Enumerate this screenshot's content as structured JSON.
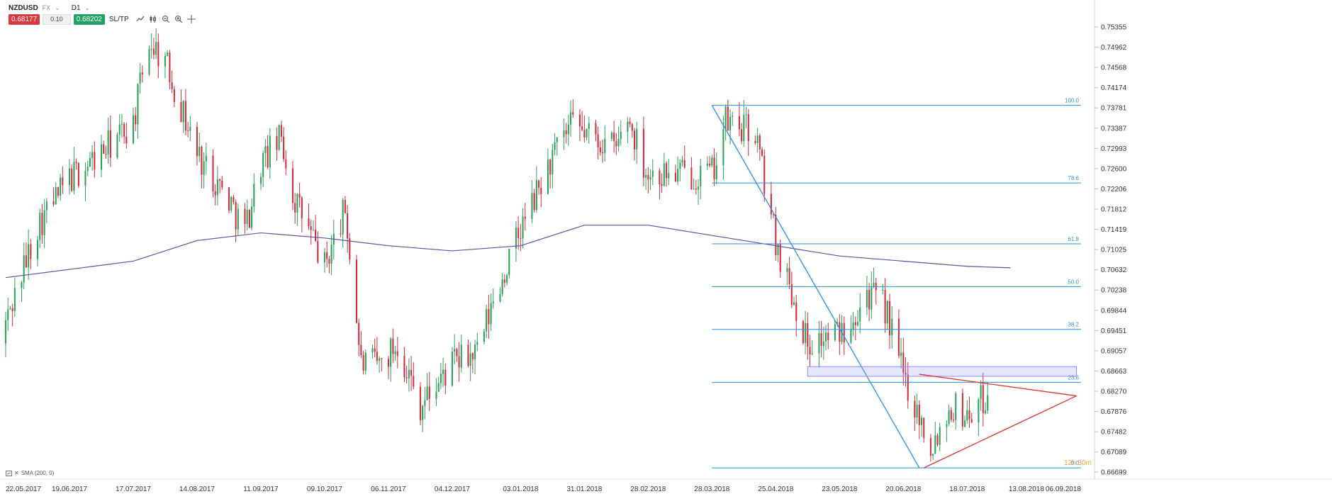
{
  "header": {
    "symbol": "NZDUSD",
    "market_tag": "FX",
    "timeframe": "D1",
    "sell_price": "0.68177",
    "volume": "0.10",
    "buy_price": "0.68202",
    "sltp_label": "SL/TP"
  },
  "toolbar_icons": [
    "line-chart-icon",
    "candlestick-icon",
    "zoom-out-icon",
    "zoom-in-icon",
    "crosshair-icon"
  ],
  "indicator_legend": "SMA (200, 0)",
  "countdown": "12h 30m",
  "colors": {
    "up": "#2ca05a",
    "down": "#cf2d3b",
    "sma": "#5b4fa3",
    "fib": "#2a8fe0",
    "triangle": "#e03030",
    "zone": "#8a8ff0"
  },
  "chart_data": {
    "type": "candlestick",
    "instrument": "NZDUSD",
    "timeframe": "D1",
    "ylim": [
      0.66699,
      0.75355
    ],
    "y_ticks": [
      "0.75355",
      "0.74962",
      "0.74568",
      "0.74174",
      "0.73781",
      "0.73387",
      "0.72993",
      "0.72600",
      "0.72206",
      "0.71812",
      "0.71419",
      "0.71025",
      "0.70632",
      "0.70238",
      "0.69844",
      "0.69451",
      "0.69057",
      "0.68663",
      "0.68270",
      "0.67876",
      "0.67482",
      "0.67089",
      "0.66699"
    ],
    "x_ticks": [
      "22.05.2017",
      "19.06.2017",
      "17.07.2017",
      "14.08.2017",
      "11.09.2017",
      "09.10.2017",
      "06.11.2017",
      "04.12.2017",
      "03.01.2018",
      "31.01.2018",
      "28.02.2018",
      "28.03.2018",
      "25.04.2018",
      "23.05.2018",
      "20.06.2018",
      "18.07.2018",
      "13.08.2018",
      "06.09.2018"
    ],
    "last_visible_date": "06.09.2018",
    "price_path": [
      [
        "22.05.2017",
        0.696
      ],
      [
        "05.06.2017",
        0.715
      ],
      [
        "19.06.2017",
        0.724
      ],
      [
        "03.07.2017",
        0.729
      ],
      [
        "17.07.2017",
        0.735
      ],
      [
        "24.07.2017",
        0.751
      ],
      [
        "31.07.2017",
        0.747
      ],
      [
        "14.08.2017",
        0.729
      ],
      [
        "28.08.2017",
        0.72
      ],
      [
        "04.09.2017",
        0.714
      ],
      [
        "11.09.2017",
        0.727
      ],
      [
        "20.09.2017",
        0.732
      ],
      [
        "25.09.2017",
        0.721
      ],
      [
        "09.10.2017",
        0.707
      ],
      [
        "18.10.2017",
        0.718
      ],
      [
        "25.10.2017",
        0.688
      ],
      [
        "02.11.2017",
        0.688
      ],
      [
        "10.11.2017",
        0.692
      ],
      [
        "20.11.2017",
        0.68
      ],
      [
        "04.12.2017",
        0.688
      ],
      [
        "15.12.2017",
        0.69
      ],
      [
        "22.12.2017",
        0.7
      ],
      [
        "03.01.2018",
        0.714
      ],
      [
        "17.01.2018",
        0.728
      ],
      [
        "25.01.2018",
        0.734
      ],
      [
        "31.01.2018",
        0.733
      ],
      [
        "14.02.2018",
        0.73
      ],
      [
        "19.02.2018",
        0.736
      ],
      [
        "28.02.2018",
        0.725
      ],
      [
        "14.03.2018",
        0.725
      ],
      [
        "28.03.2018",
        0.725
      ],
      [
        "03.04.2018",
        0.735
      ],
      [
        "16.04.2018",
        0.733
      ],
      [
        "25.04.2018",
        0.712
      ],
      [
        "09.05.2018",
        0.692
      ],
      [
        "23.05.2018",
        0.694
      ],
      [
        "04.06.2018",
        0.702
      ],
      [
        "12.06.2018",
        0.699
      ],
      [
        "20.06.2018",
        0.686
      ],
      [
        "02.07.2018",
        0.672
      ],
      [
        "11.07.2018",
        0.68
      ],
      [
        "18.07.2018",
        0.678
      ],
      [
        "27.07.2018",
        0.682
      ]
    ],
    "sma200": [
      [
        "22.05.2017",
        0.7048
      ],
      [
        "17.07.2017",
        0.708
      ],
      [
        "14.08.2017",
        0.712
      ],
      [
        "11.09.2017",
        0.7135
      ],
      [
        "09.10.2017",
        0.7125
      ],
      [
        "06.11.2017",
        0.711
      ],
      [
        "04.12.2017",
        0.71
      ],
      [
        "03.01.2018",
        0.711
      ],
      [
        "31.01.2018",
        0.715
      ],
      [
        "28.02.2018",
        0.715
      ],
      [
        "28.03.2018",
        0.713
      ],
      [
        "25.04.2018",
        0.711
      ],
      [
        "23.05.2018",
        0.709
      ],
      [
        "20.06.2018",
        0.708
      ],
      [
        "18.07.2018",
        0.707
      ],
      [
        "06.08.2018",
        0.7067
      ]
    ],
    "fibonacci": {
      "start_date": "28.03.2018",
      "end_date": "06.09.2018",
      "high": 0.7383,
      "low": 0.6678,
      "levels": [
        {
          "label": "100.0",
          "ratio": 1.0
        },
        {
          "label": "78.6",
          "ratio": 0.786
        },
        {
          "label": "61.8",
          "ratio": 0.618
        },
        {
          "label": "50.0",
          "ratio": 0.5
        },
        {
          "label": "38.2",
          "ratio": 0.382
        },
        {
          "label": "23.6",
          "ratio": 0.236
        },
        {
          "label": "0.0",
          "ratio": 0.0
        }
      ]
    },
    "trend_line": {
      "from": [
        "28.03.2018",
        0.7383
      ],
      "to": [
        "27.06.2018",
        0.6678
      ]
    },
    "resistance_zone": {
      "from_date": "09.05.2018",
      "to_date": "04.09.2018",
      "top": 0.6875,
      "bottom": 0.6856
    },
    "triangle": {
      "upper": {
        "from": [
          "27.06.2018",
          0.686
        ],
        "to": [
          "04.09.2018",
          0.6818
        ]
      },
      "lower": {
        "from": [
          "29.06.2018",
          0.6678
        ],
        "to": [
          "04.09.2018",
          0.6818
        ]
      }
    }
  }
}
